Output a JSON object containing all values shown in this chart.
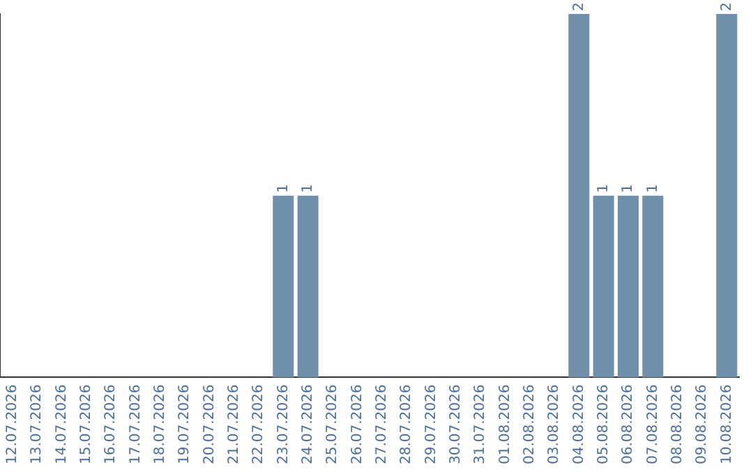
{
  "chart_data": {
    "type": "bar",
    "categories": [
      "12.07.2026",
      "13.07.2026",
      "14.07.2026",
      "15.07.2026",
      "16.07.2026",
      "17.07.2026",
      "18.07.2026",
      "19.07.2026",
      "20.07.2026",
      "21.07.2026",
      "22.07.2026",
      "23.07.2026",
      "24.07.2026",
      "25.07.2026",
      "26.07.2026",
      "27.07.2026",
      "28.07.2026",
      "29.07.2026",
      "30.07.2026",
      "31.07.2026",
      "01.08.2026",
      "02.08.2026",
      "03.08.2026",
      "04.08.2026",
      "05.08.2026",
      "06.08.2026",
      "07.08.2026",
      "08.08.2026",
      "09.08.2026",
      "10.08.2026"
    ],
    "values": [
      0,
      0,
      0,
      0,
      0,
      0,
      0,
      0,
      0,
      0,
      0,
      1,
      1,
      0,
      0,
      0,
      0,
      0,
      0,
      0,
      0,
      0,
      0,
      2,
      1,
      1,
      1,
      0,
      0,
      2
    ],
    "value_labels": [
      null,
      null,
      null,
      null,
      null,
      null,
      null,
      null,
      null,
      null,
      null,
      "1",
      "1",
      null,
      null,
      null,
      null,
      null,
      null,
      null,
      null,
      null,
      null,
      "2",
      "1",
      "1",
      "1",
      null,
      null,
      "2"
    ],
    "color": "#6f8fab",
    "ylim": [
      0,
      2
    ],
    "tick_labels": "x",
    "grid": false,
    "legend": false
  }
}
